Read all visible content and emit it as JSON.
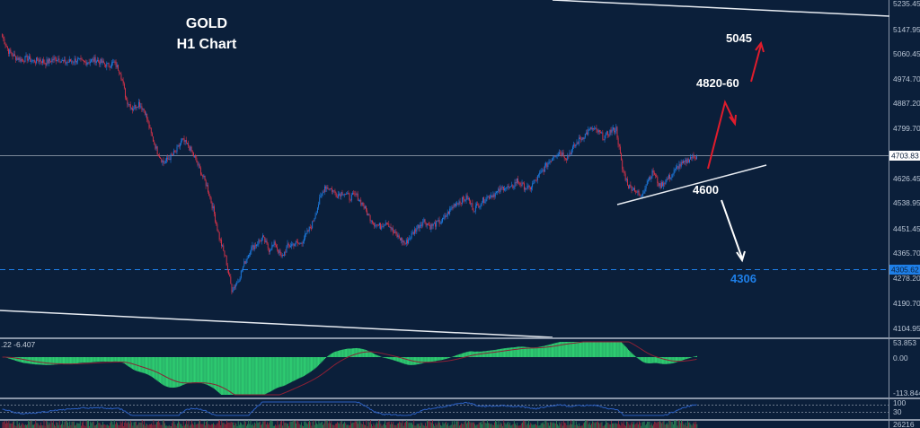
{
  "chart_title": {
    "line1": "GOLD",
    "line2": "H1 Chart"
  },
  "colors": {
    "background": "#0b1f3a",
    "bull_candle": "#1e7fe8",
    "bear_candle": "#e0344a",
    "grid_axis": "#8a96a8",
    "hline": "#7a8698",
    "support_dashed": "#1e7fe8",
    "trendline": "#e8ecf2",
    "bull_arrow": "#e01c2c",
    "bear_arrow": "#ffffff",
    "macd_hist": "#2ecc71",
    "macd_signal": "#8b2035",
    "rsi_line": "#2b5fc0"
  },
  "price_axis": {
    "labels": [
      "5235.45",
      "5147.95",
      "5060.45",
      "4974.70",
      "4887.20",
      "4799.70",
      "4626.45",
      "4538.95",
      "4451.45",
      "4365.70",
      "4278.20",
      "4190.70",
      "4104.95"
    ],
    "current_price": "4703.83",
    "support_price_tag": "4305.62"
  },
  "annotations": {
    "target_high": "5045",
    "target_mid": "4820-60",
    "pivot": "4600",
    "target_low": "4306"
  },
  "macd_panel": {
    "header": ".22 -6.407",
    "labels": [
      "53.853",
      "0.00",
      "-113.844"
    ]
  },
  "rsi_panel": {
    "labels": [
      "100",
      "70",
      "30",
      "0"
    ]
  },
  "volume_panel": {
    "labels": [
      "26216"
    ]
  },
  "chart_data": {
    "type": "candlestick",
    "title": "GOLD H1 Chart",
    "xlabel": "",
    "ylabel": "Price",
    "ylim": [
      4104.95,
      5235.45
    ],
    "y_ticks": [
      5235.45,
      5147.95,
      5060.45,
      4974.7,
      4887.2,
      4799.7,
      4626.45,
      4538.95,
      4451.45,
      4365.7,
      4278.2,
      4190.7,
      4104.95
    ],
    "close_series_approx": [
      5120,
      5070,
      5050,
      5040,
      5045,
      5035,
      5040,
      5030,
      5040,
      5045,
      5030,
      5035,
      5040,
      5030,
      5035,
      5040,
      5030,
      5020,
      5030,
      5000,
      4900,
      4870,
      4890,
      4860,
      4780,
      4720,
      4680,
      4700,
      4720,
      4760,
      4740,
      4700,
      4650,
      4600,
      4520,
      4420,
      4350,
      4240,
      4270,
      4330,
      4380,
      4400,
      4420,
      4380,
      4400,
      4350,
      4390,
      4400,
      4400,
      4430,
      4470,
      4540,
      4600,
      4590,
      4570,
      4580,
      4560,
      4570,
      4540,
      4500,
      4470,
      4460,
      4480,
      4440,
      4420,
      4400,
      4430,
      4460,
      4480,
      4460,
      4470,
      4480,
      4510,
      4540,
      4550,
      4560,
      4520,
      4540,
      4560,
      4570,
      4580,
      4600,
      4590,
      4620,
      4600,
      4590,
      4620,
      4650,
      4680,
      4710,
      4720,
      4700,
      4730,
      4760,
      4780,
      4800,
      4790,
      4770,
      4790,
      4800,
      4660,
      4600,
      4590,
      4560,
      4620,
      4650,
      4600,
      4620,
      4640,
      4670,
      4680,
      4700,
      4703.83
    ],
    "current_price": 4703.83,
    "horizontal_lines": [
      {
        "price": 4703.83,
        "style": "solid"
      },
      {
        "price": 4305.62,
        "style": "dashed"
      }
    ],
    "trendlines": [
      {
        "name": "upper channel",
        "from": [
          615,
          0
        ],
        "to": [
          990,
          18
        ]
      },
      {
        "name": "lower channel",
        "from": [
          0,
          346
        ],
        "to": [
          615,
          376
        ]
      },
      {
        "name": "ascending support",
        "from": [
          687,
          228
        ],
        "to": [
          853,
          184
        ]
      }
    ],
    "scenarios": [
      {
        "label": "4820-60",
        "direction": "up",
        "color": "red"
      },
      {
        "label": "5045",
        "direction": "up",
        "color": "red"
      },
      {
        "label": "4600",
        "direction": "down",
        "color": "white"
      },
      {
        "label": "4306",
        "direction": "down target",
        "color": "blue"
      }
    ],
    "indicators": [
      {
        "name": "MACD",
        "values_shown": [
          ".22",
          "-6.407"
        ],
        "range": [
          -113.844,
          53.853
        ]
      },
      {
        "name": "RSI",
        "levels": [
          70,
          30
        ]
      },
      {
        "name": "Volume",
        "max_label": 26216
      }
    ]
  }
}
